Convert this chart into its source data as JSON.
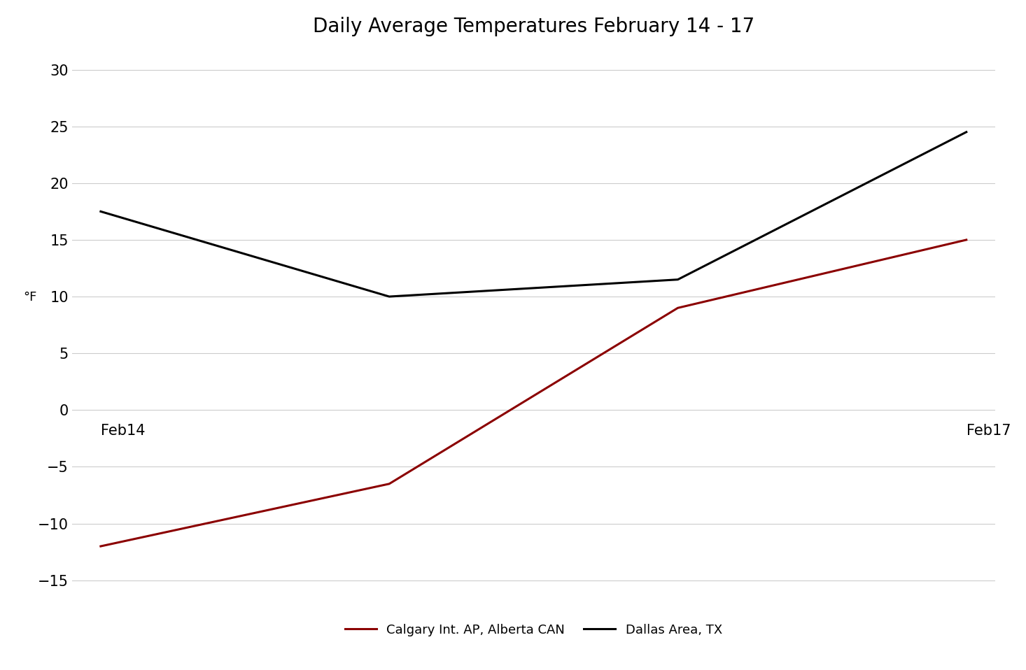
{
  "title": "Daily Average Temperatures February 14 - 17",
  "ylabel": "°F",
  "x_values": [
    0,
    1,
    2,
    3
  ],
  "x_tick_positions": [
    0,
    3
  ],
  "x_tick_labels": [
    "Feb14",
    "Feb17"
  ],
  "ylim": [
    -17,
    32
  ],
  "yticks": [
    -15,
    -10,
    -5,
    0,
    5,
    10,
    15,
    20,
    25,
    30
  ],
  "calgary_values": [
    -12.0,
    -6.5,
    9.0,
    15.0
  ],
  "dallas_values": [
    17.5,
    10.0,
    11.5,
    24.5
  ],
  "calgary_color": "#8B0000",
  "dallas_color": "#000000",
  "calgary_label": "Calgary Int. AP, Alberta CAN",
  "dallas_label": "Dallas Area, TX",
  "line_width": 2.2,
  "background_color": "#ffffff",
  "grid_color": "#cccccc",
  "title_fontsize": 20,
  "ylabel_fontsize": 13,
  "tick_fontsize": 15,
  "legend_fontsize": 13,
  "xlim": [
    -0.1,
    3.1
  ]
}
